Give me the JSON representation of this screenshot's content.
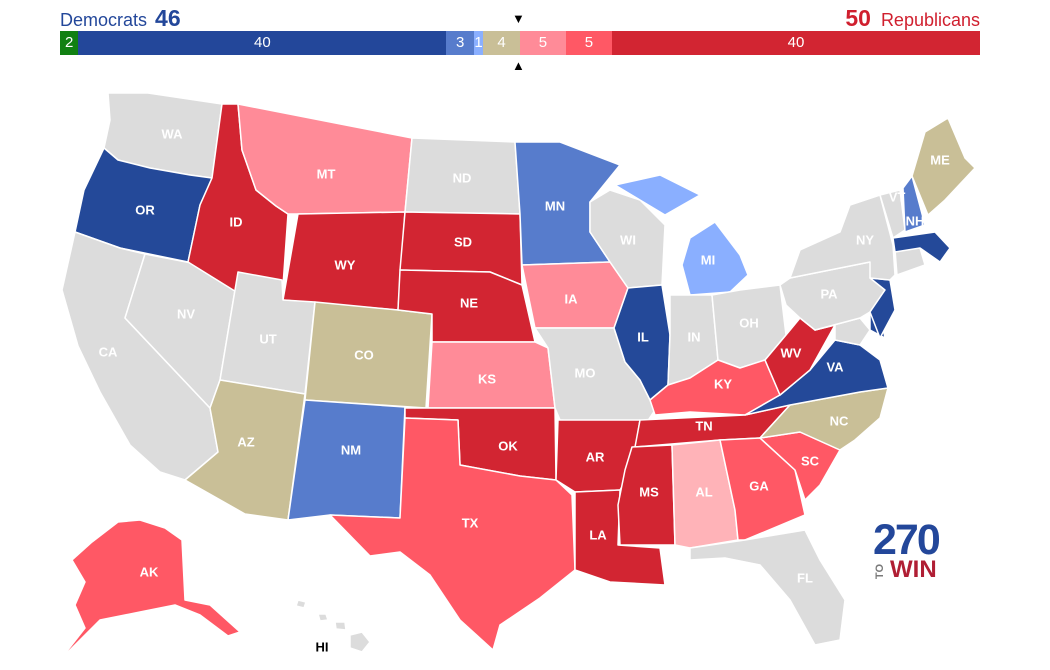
{
  "header": {
    "dem_label": "Democrats",
    "dem_total": "46",
    "rep_label": "Republicans",
    "rep_total": "50",
    "marker_down": "▼",
    "marker_up": "▲"
  },
  "seat_bar": [
    {
      "label": "2",
      "seats": 2,
      "color": "#118012"
    },
    {
      "label": "40",
      "seats": 40,
      "color": "#23479a"
    },
    {
      "label": "3",
      "seats": 3,
      "color": "#577ccc"
    },
    {
      "label": "1",
      "seats": 1,
      "color": "#8aafff"
    },
    {
      "label": "4",
      "seats": 4,
      "color": "#c9bf97"
    },
    {
      "label": "5",
      "seats": 5,
      "color": "#ff8b98"
    },
    {
      "label": "5",
      "seats": 5,
      "color": "#ff5865"
    },
    {
      "label": "40",
      "seats": 40,
      "color": "#d22532"
    }
  ],
  "rating_colors": {
    "safe_d": "#244999",
    "likely_d": "#577ccc",
    "lean_d": "#8aafff",
    "tossup": "#c9bf97",
    "lean_r": "#ff8b98",
    "likely_r": "#ff5865",
    "safe_r": "#d22532",
    "no_race": "#dcdcdc",
    "tilt_r": "#ffb3b8"
  },
  "states": {
    "WA": {
      "label": "WA",
      "rating": "no_race"
    },
    "OR": {
      "label": "OR",
      "rating": "safe_d"
    },
    "CA": {
      "label": "CA",
      "rating": "no_race"
    },
    "NV": {
      "label": "NV",
      "rating": "no_race"
    },
    "ID": {
      "label": "ID",
      "rating": "safe_r"
    },
    "MT": {
      "label": "MT",
      "rating": "lean_r"
    },
    "WY": {
      "label": "WY",
      "rating": "safe_r"
    },
    "UT": {
      "label": "UT",
      "rating": "no_race"
    },
    "AZ": {
      "label": "AZ",
      "rating": "tossup"
    },
    "CO": {
      "label": "CO",
      "rating": "tossup"
    },
    "NM": {
      "label": "NM",
      "rating": "likely_d"
    },
    "ND": {
      "label": "ND",
      "rating": "no_race"
    },
    "SD": {
      "label": "SD",
      "rating": "safe_r"
    },
    "NE": {
      "label": "NE",
      "rating": "safe_r"
    },
    "KS": {
      "label": "KS",
      "rating": "lean_r"
    },
    "OK": {
      "label": "OK",
      "rating": "safe_r"
    },
    "TX": {
      "label": "TX",
      "rating": "likely_r"
    },
    "MN": {
      "label": "MN",
      "rating": "likely_d"
    },
    "IA": {
      "label": "IA",
      "rating": "lean_r"
    },
    "MO": {
      "label": "MO",
      "rating": "no_race"
    },
    "AR": {
      "label": "AR",
      "rating": "safe_r"
    },
    "LA": {
      "label": "LA",
      "rating": "safe_r"
    },
    "WI": {
      "label": "WI",
      "rating": "no_race"
    },
    "IL": {
      "label": "IL",
      "rating": "safe_d"
    },
    "MI": {
      "label": "MI",
      "rating": "lean_d"
    },
    "IN": {
      "label": "IN",
      "rating": "no_race"
    },
    "OH": {
      "label": "OH",
      "rating": "no_race"
    },
    "KY": {
      "label": "KY",
      "rating": "likely_r"
    },
    "TN": {
      "label": "TN",
      "rating": "safe_r"
    },
    "MS": {
      "label": "MS",
      "rating": "safe_r"
    },
    "AL": {
      "label": "AL",
      "rating": "tilt_r"
    },
    "GA": {
      "label": "GA",
      "rating": "likely_r"
    },
    "FL": {
      "label": "FL",
      "rating": "no_race"
    },
    "SC": {
      "label": "SC",
      "rating": "likely_r"
    },
    "NC": {
      "label": "NC",
      "rating": "tossup"
    },
    "VA": {
      "label": "VA",
      "rating": "safe_d"
    },
    "WV": {
      "label": "WV",
      "rating": "safe_r"
    },
    "PA": {
      "label": "PA",
      "rating": "no_race"
    },
    "NY": {
      "label": "NY",
      "rating": "no_race"
    },
    "NJ": {
      "label": "",
      "rating": "safe_d"
    },
    "DE": {
      "label": "",
      "rating": "safe_d"
    },
    "MD": {
      "label": "",
      "rating": "no_race"
    },
    "CT": {
      "label": "",
      "rating": "no_race"
    },
    "MA": {
      "label": "",
      "rating": "safe_d"
    },
    "VT": {
      "label": "VT",
      "rating": "no_race"
    },
    "NH": {
      "label": "NH",
      "rating": "likely_d"
    },
    "ME": {
      "label": "ME",
      "rating": "tossup"
    },
    "AK": {
      "label": "AK",
      "rating": "likely_r"
    },
    "HI": {
      "label": "HI",
      "rating": "no_race"
    }
  },
  "logo": {
    "number": "270",
    "to": "TO",
    "win": "WIN"
  }
}
